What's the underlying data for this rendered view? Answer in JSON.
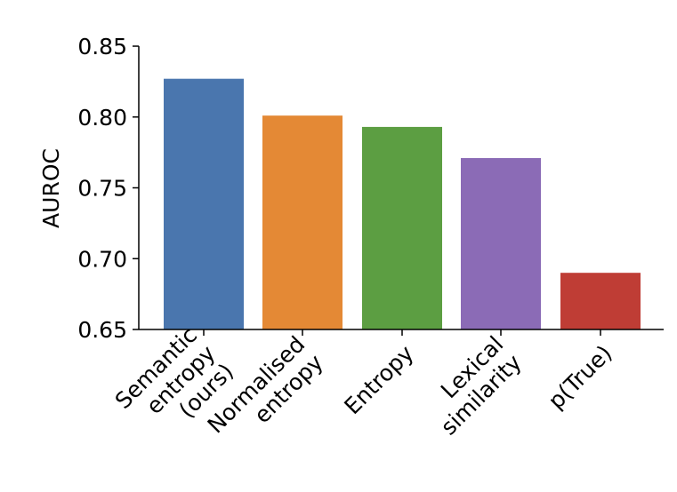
{
  "chart_data": {
    "type": "bar",
    "categories": [
      [
        "Semantic",
        "entropy",
        "(ours)"
      ],
      [
        "Normalised",
        "entropy"
      ],
      [
        "Entropy"
      ],
      [
        "Lexical",
        "similarity"
      ],
      [
        "p(True)"
      ]
    ],
    "values": [
      0.827,
      0.801,
      0.793,
      0.771,
      0.69
    ],
    "colors": [
      "#4a76ae",
      "#e48935",
      "#5c9e42",
      "#8b6bb6",
      "#bf3d35"
    ],
    "ylabel": "AUROC",
    "ylim": [
      0.65,
      0.85
    ],
    "yticks": [
      "0.65",
      "0.70",
      "0.75",
      "0.80",
      "0.85"
    ],
    "grid": false,
    "legend": "none"
  }
}
